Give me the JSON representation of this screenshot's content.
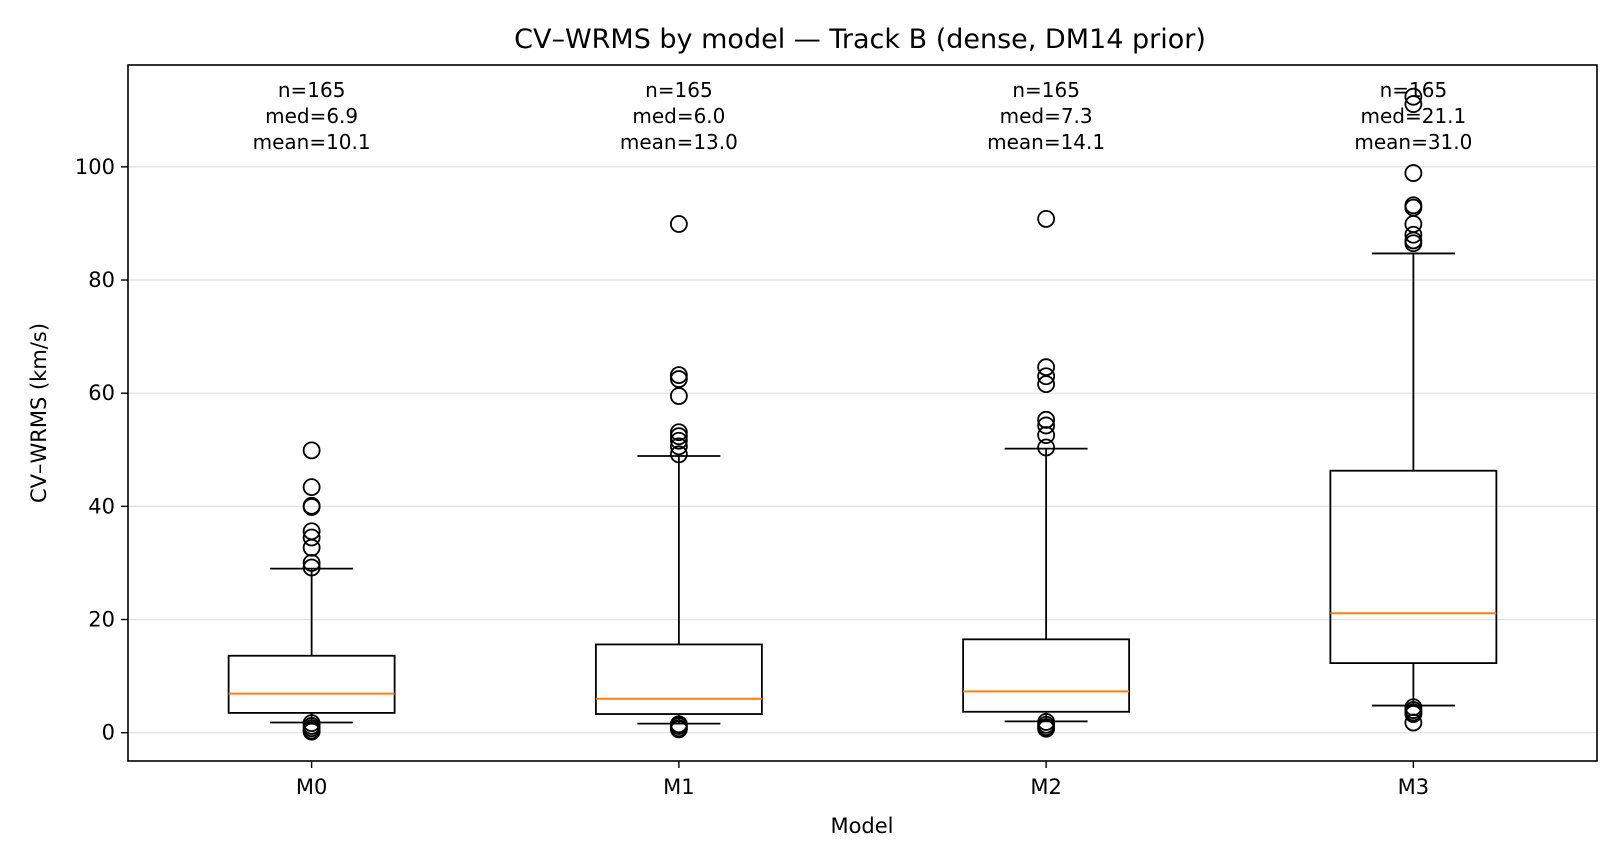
{
  "chart_data": {
    "type": "box",
    "title": "CV–WRMS by model  —  Track B (dense, DM14 prior)",
    "xlabel": "Model",
    "ylabel": "CV–WRMS (km/s)",
    "ylim": [
      -5,
      118
    ],
    "yticks": [
      0,
      20,
      40,
      60,
      80,
      100
    ],
    "grid": "horizontal",
    "colors": {
      "box": "#000000",
      "median": "#ff7f0e",
      "grid": "#e0e0e0"
    },
    "categories": [
      "M0",
      "M1",
      "M2",
      "M3"
    ],
    "boxes": [
      {
        "label": "M0",
        "whisker_low": 1.8,
        "q1": 3.5,
        "median": 6.9,
        "q3": 13.6,
        "whisker_high": 29.0,
        "outliers": [
          49.9,
          43.4,
          40.1,
          39.9,
          35.6,
          34.5,
          32.7,
          30.0,
          29.2,
          1.7,
          1.2,
          0.8,
          0.4,
          0.2
        ],
        "annotation": [
          "n=165",
          "med=6.9",
          "mean=10.1"
        ]
      },
      {
        "label": "M1",
        "whisker_low": 1.6,
        "q1": 3.3,
        "median": 6.0,
        "q3": 15.6,
        "whisker_high": 48.9,
        "outliers": [
          89.9,
          63.2,
          62.5,
          59.5,
          53.1,
          52.4,
          51.6,
          50.6,
          49.2,
          1.5,
          1.2,
          0.8,
          0.6
        ],
        "annotation": [
          "n=165",
          "med=6.0",
          "mean=13.0"
        ]
      },
      {
        "label": "M2",
        "whisker_low": 2.0,
        "q1": 3.7,
        "median": 7.3,
        "q3": 16.5,
        "whisker_high": 50.2,
        "outliers": [
          90.8,
          64.6,
          63.0,
          61.6,
          55.3,
          54.3,
          52.6,
          50.4,
          1.9,
          1.4,
          1.0,
          0.7
        ],
        "annotation": [
          "n=165",
          "med=7.3",
          "mean=14.1"
        ]
      },
      {
        "label": "M3",
        "whisker_low": 4.8,
        "q1": 12.3,
        "median": 21.1,
        "q3": 46.3,
        "whisker_high": 84.7,
        "outliers": [
          112.4,
          111.1,
          98.9,
          93.2,
          92.8,
          89.9,
          88.0,
          87.0,
          86.5,
          4.5,
          4.0,
          3.6,
          3.3,
          1.8
        ],
        "annotation": [
          "n=165",
          "med=21.1",
          "mean=31.0"
        ]
      }
    ]
  }
}
